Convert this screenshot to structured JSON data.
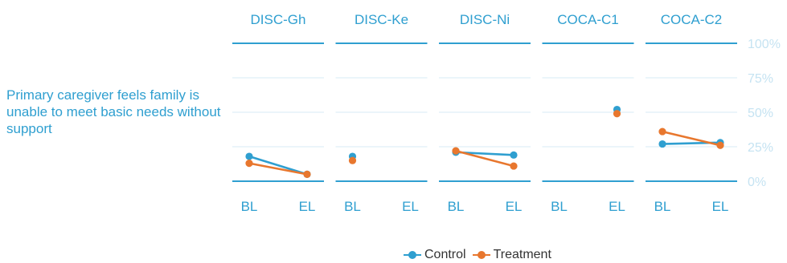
{
  "chart_data": {
    "type": "line",
    "facets": [
      "DISC-Gh",
      "DISC-Ke",
      "DISC-Ni",
      "COCA-C1",
      "COCA-C2"
    ],
    "x": [
      "BL",
      "EL"
    ],
    "row_label": "Primary caregiver feels family is unable to meet basic needs without support",
    "ylim": [
      0,
      100
    ],
    "y_ticks": [
      "0%",
      "25%",
      "50%",
      "75%",
      "100%"
    ],
    "grid": true,
    "legend_position": "bottom",
    "series": [
      {
        "name": "Control",
        "color": "#2f9fd0",
        "values": [
          [
            18,
            5
          ],
          [
            18,
            null
          ],
          [
            21,
            19
          ],
          [
            null,
            52
          ],
          [
            27,
            28
          ]
        ]
      },
      {
        "name": "Treatment",
        "color": "#e8772e",
        "values": [
          [
            13,
            5
          ],
          [
            15,
            null
          ],
          [
            22,
            11
          ],
          [
            null,
            49
          ],
          [
            36,
            26
          ]
        ]
      }
    ]
  }
}
